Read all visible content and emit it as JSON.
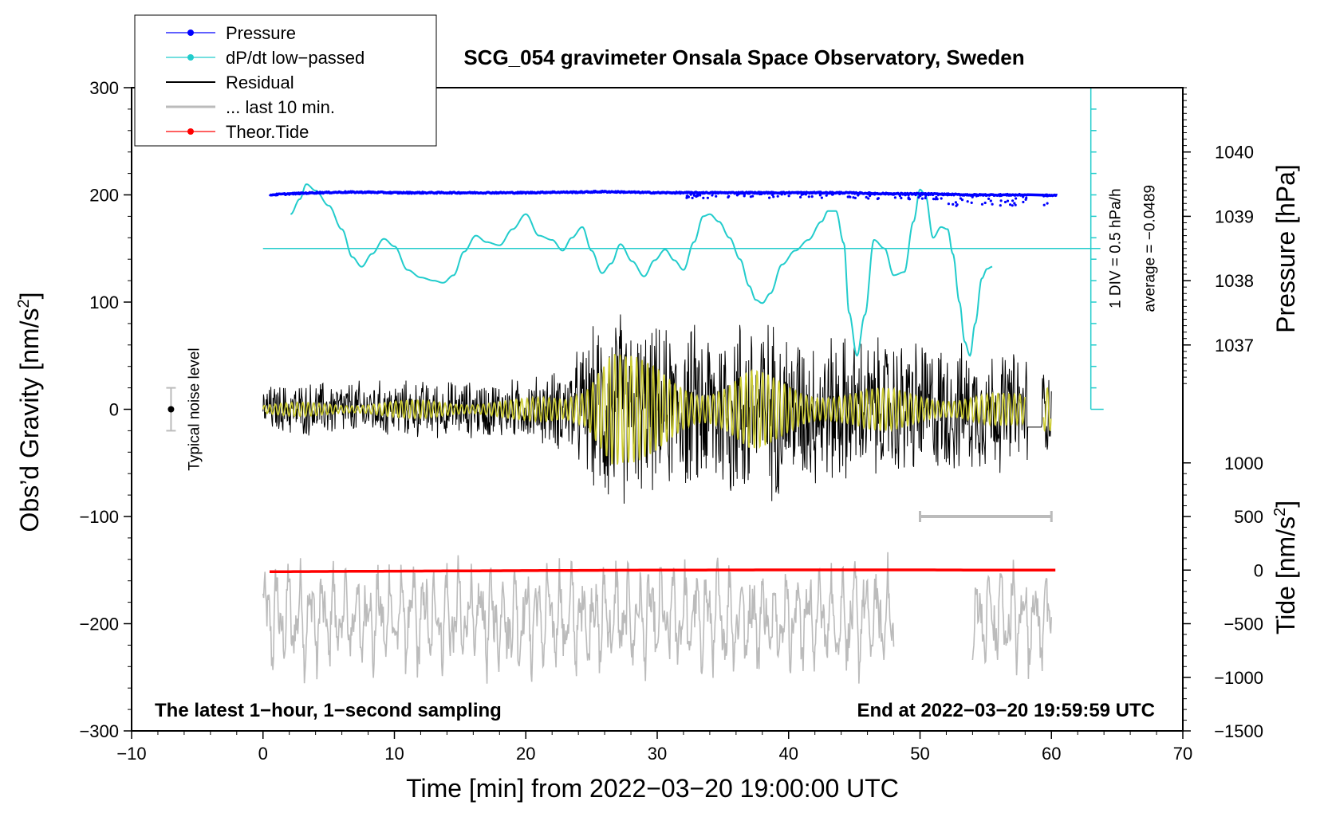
{
  "chart_data": {
    "type": "line",
    "title": "SCG_054 gravimeter Onsala Space Observatory, Sweden",
    "xlabel": "Time [min] from 2022−03−20 19:00:00 UTC",
    "ylabel_left": "Obs’d Gravity [nm/s",
    "ylabel_left_sup": "2",
    "ylabel_left_end": "]",
    "ylabel_right_top": "Pressure [hPa]",
    "ylabel_right_bottom": "Tide [nm/s",
    "ylabel_right_bottom_sup": "2",
    "ylabel_right_bottom_end": "]",
    "xlim": [
      -10,
      70
    ],
    "ylim": [
      -300,
      300
    ],
    "x_ticks": [
      -10,
      0,
      10,
      20,
      30,
      40,
      50,
      60,
      70
    ],
    "x_tick_labels": [
      "−10",
      "0",
      "10",
      "20",
      "30",
      "40",
      "50",
      "60",
      "70"
    ],
    "y_ticks": [
      -300,
      -200,
      -100,
      0,
      100,
      200,
      300
    ],
    "y_tick_labels": [
      "−300",
      "−200",
      "−100",
      "0",
      "100",
      "200",
      "300"
    ],
    "pressure_axis": {
      "ticks": [
        1037,
        1038,
        1039,
        1040
      ],
      "tick_labels": [
        "1037",
        "1038",
        "1039",
        "1040"
      ],
      "map": {
        "value_a": 1037,
        "gravity_a": 60,
        "value_b": 1040,
        "gravity_b": 240
      }
    },
    "tide_axis": {
      "ticks": [
        -1500,
        -1000,
        -500,
        0,
        500,
        1000
      ],
      "tick_labels": [
        "−1500",
        "−1000",
        "−500",
        "0",
        "500",
        "1000"
      ],
      "map": {
        "value_a": -1500,
        "gravity_a": -300,
        "value_b": 1000,
        "gravity_b": -50
      }
    },
    "legend": [
      {
        "label": "Pressure",
        "color": "#0000ff",
        "marker": true
      },
      {
        "label": "dP/dt low−passed",
        "color": "#22cccc",
        "marker": true
      },
      {
        "label": "Residual",
        "color": "#000000",
        "marker": false
      },
      {
        "label": "... last 10 min.",
        "color": "#bbbbbb",
        "marker": false
      },
      {
        "label": "Theor.Tide",
        "color": "#ff0000",
        "marker": true
      }
    ],
    "series": [
      {
        "name": "Pressure",
        "color": "#0000ff",
        "x": [
          0.5,
          2,
          4,
          6,
          8,
          10,
          12,
          14,
          16,
          18,
          20,
          22,
          24,
          26,
          28,
          30,
          32,
          34,
          36,
          38,
          40,
          42,
          44,
          46,
          48,
          50,
          52,
          54,
          56,
          58,
          59,
          60.5
        ],
        "y": [
          200,
          201,
          202,
          202.5,
          202.5,
          202,
          202,
          202,
          202,
          202,
          202,
          202.5,
          202.5,
          203,
          202.5,
          202,
          202,
          202,
          202,
          202,
          202,
          202,
          202,
          201.5,
          201,
          201,
          200.5,
          200,
          200,
          200,
          199.5,
          199.5
        ]
      },
      {
        "name": "dP/dt low-passed",
        "color": "#22cccc",
        "x": [
          2.1,
          2.8,
          3.3,
          4,
          5,
          6,
          6.8,
          7.5,
          8.3,
          9.2,
          10,
          11,
          12,
          13,
          13.7,
          14.5,
          15.3,
          16.2,
          17,
          18,
          19,
          20,
          21,
          22,
          22.8,
          23.5,
          24.3,
          25,
          25.8,
          26.5,
          27.2,
          28.1,
          29,
          29.8,
          30.6,
          31.3,
          32,
          32.8,
          33.5,
          34,
          34.7,
          35.5,
          36.3,
          37,
          37.5,
          38,
          38.6,
          39.5,
          40.5,
          41.5,
          42.5,
          43,
          43.6,
          44.2,
          44.6,
          45.2,
          45.8,
          46.5,
          47.3,
          48,
          48.8,
          49.5,
          50,
          50.4,
          51,
          51.6,
          52.1,
          52.5,
          53,
          53.4,
          53.8,
          54.2,
          54.7,
          55.1,
          55.5
        ],
        "y": [
          182,
          196,
          210,
          204,
          190,
          168,
          142,
          133,
          145,
          159,
          152,
          130,
          123,
          120,
          118,
          125,
          147,
          162,
          156,
          153,
          168,
          182,
          162,
          158,
          148,
          160,
          170,
          148,
          127,
          136,
          154,
          138,
          124,
          139,
          149,
          139,
          130,
          156,
          180,
          182,
          175,
          160,
          140,
          115,
          102,
          99,
          108,
          135,
          148,
          158,
          175,
          185,
          185,
          155,
          90,
          50,
          88,
          158,
          150,
          125,
          128,
          175,
          205,
          200,
          160,
          170,
          168,
          145,
          100,
          63,
          50,
          80,
          122,
          131,
          133
        ]
      },
      {
        "name": "Residual",
        "color": "#000000",
        "x": [
          0,
          5,
          10,
          15,
          20,
          23,
          25,
          26,
          27,
          28,
          30,
          32,
          34,
          36,
          38,
          40,
          42,
          44,
          46,
          48,
          50,
          52,
          54,
          56,
          58,
          60
        ],
        "envelope": [
          25,
          30,
          30,
          30,
          32,
          45,
          80,
          110,
          110,
          90,
          85,
          85,
          95,
          105,
          100,
          85,
          80,
          80,
          75,
          75,
          75,
          70,
          65,
          65,
          60,
          45
        ]
      },
      {
        "name": "Filtered residual",
        "color": "#cccc33",
        "x": [
          0,
          5,
          10,
          15,
          20,
          23,
          24.5,
          25.5,
          26.5,
          27.5,
          29,
          31,
          33,
          35,
          37,
          39,
          41,
          43,
          45,
          47,
          49,
          51,
          53,
          55,
          57,
          60
        ],
        "envelope": [
          5,
          8,
          8,
          10,
          10,
          15,
          40,
          75,
          85,
          60,
          45,
          35,
          30,
          35,
          40,
          30,
          25,
          25,
          20,
          20,
          20,
          20,
          15,
          15,
          15,
          20
        ]
      },
      {
        "name": "... last 10 min.",
        "color": "#bbbbbb",
        "x": [
          0,
          48,
          54,
          60
        ],
        "center": -195,
        "amplitude": 45
      },
      {
        "name": "Theor.Tide",
        "color": "#ff0000",
        "x": [
          0.5,
          10,
          20,
          30,
          40,
          50,
          55,
          60
        ],
        "y": [
          -151.5,
          -151,
          -150.5,
          -150,
          -149.8,
          -149.8,
          -150,
          -150
        ]
      }
    ],
    "noise_bar": {
      "x": -7,
      "y": 0,
      "low": -20,
      "high": 20,
      "label": "Typical noise level"
    },
    "dpdt_scale": {
      "x": 63,
      "label_div": "1 DIV = 0.5 hPa/h",
      "label_avg": "average = −0.0489",
      "baseline_y": 150
    },
    "ten_min_bar": {
      "x_start": 50,
      "x_end": 60,
      "y": -100
    },
    "footer_left": "The latest 1−hour, 1−second sampling",
    "footer_right": "End at 2022−03−20 19:59:59 UTC"
  }
}
